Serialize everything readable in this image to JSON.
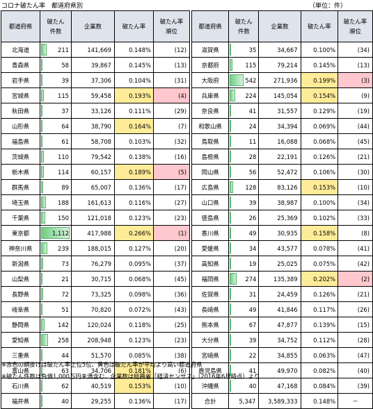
{
  "title": "コロナ破たん率　都道府県別",
  "unit": "（単位：件）",
  "headers": {
    "pref": "都道府県",
    "count_l1": "破たん",
    "count_l2": "件数",
    "companies": "企業数",
    "rate": "破たん率",
    "rank_l1": "破たん率",
    "rank_l2": "順位"
  },
  "max_count": 1112,
  "left_rows": [
    {
      "pref": "北海道",
      "count": "211",
      "count_value": 211,
      "companies": "141,669",
      "rate": "0.148%",
      "rank": "(12)",
      "highlight": "",
      "rank_highlight": ""
    },
    {
      "pref": "青森県",
      "count": "58",
      "count_value": 58,
      "companies": "39,867",
      "rate": "0.145%",
      "rank": "(13)",
      "highlight": "",
      "rank_highlight": ""
    },
    {
      "pref": "岩手県",
      "count": "39",
      "count_value": 39,
      "companies": "37,306",
      "rate": "0.104%",
      "rank": "(31)",
      "highlight": "",
      "rank_highlight": ""
    },
    {
      "pref": "宮城県",
      "count": "115",
      "count_value": 115,
      "companies": "59,458",
      "rate": "0.193%",
      "rank": "(4)",
      "highlight": "yellow",
      "rank_highlight": "pink"
    },
    {
      "pref": "秋田県",
      "count": "37",
      "count_value": 37,
      "companies": "33,126",
      "rate": "0.111%",
      "rank": "(29)",
      "highlight": "",
      "rank_highlight": ""
    },
    {
      "pref": "山形県",
      "count": "64",
      "count_value": 64,
      "companies": "38,790",
      "rate": "0.164%",
      "rank": "(7)",
      "highlight": "yellow",
      "rank_highlight": ""
    },
    {
      "pref": "福島県",
      "count": "61",
      "count_value": 61,
      "companies": "58,708",
      "rate": "0.103%",
      "rank": "(32)",
      "highlight": "",
      "rank_highlight": ""
    },
    {
      "pref": "茨城県",
      "count": "110",
      "count_value": 110,
      "companies": "79,542",
      "rate": "0.138%",
      "rank": "(16)",
      "highlight": "",
      "rank_highlight": ""
    },
    {
      "pref": "栃木県",
      "count": "114",
      "count_value": 114,
      "companies": "60,157",
      "rate": "0.189%",
      "rank": "(5)",
      "highlight": "yellow",
      "rank_highlight": "pink"
    },
    {
      "pref": "群馬県",
      "count": "89",
      "count_value": 89,
      "companies": "65,007",
      "rate": "0.136%",
      "rank": "(17)",
      "highlight": "",
      "rank_highlight": ""
    },
    {
      "pref": "埼玉県",
      "count": "188",
      "count_value": 188,
      "companies": "161,613",
      "rate": "0.116%",
      "rank": "(27)",
      "highlight": "",
      "rank_highlight": ""
    },
    {
      "pref": "千葉県",
      "count": "150",
      "count_value": 150,
      "companies": "121,018",
      "rate": "0.123%",
      "rank": "(23)",
      "highlight": "",
      "rank_highlight": ""
    },
    {
      "pref": "東京都",
      "count": "1,112",
      "count_value": 1112,
      "companies": "417,988",
      "rate": "0.266%",
      "rank": "(1)",
      "highlight": "yellow",
      "rank_highlight": "pink"
    },
    {
      "pref": "神奈川県",
      "count": "239",
      "count_value": 239,
      "companies": "188,015",
      "rate": "0.127%",
      "rank": "(20)",
      "highlight": "",
      "rank_highlight": ""
    },
    {
      "pref": "新潟県",
      "count": "73",
      "count_value": 73,
      "companies": "76,279",
      "rate": "0.095%",
      "rank": "(37)",
      "highlight": "",
      "rank_highlight": ""
    },
    {
      "pref": "山梨県",
      "count": "21",
      "count_value": 21,
      "companies": "30,715",
      "rate": "0.068%",
      "rank": "(45)",
      "highlight": "",
      "rank_highlight": ""
    },
    {
      "pref": "長野県",
      "count": "72",
      "count_value": 72,
      "companies": "73,325",
      "rate": "0.098%",
      "rank": "(36)",
      "highlight": "",
      "rank_highlight": ""
    },
    {
      "pref": "岐阜県",
      "count": "51",
      "count_value": 51,
      "companies": "70,820",
      "rate": "0.072%",
      "rank": "(43)",
      "highlight": "",
      "rank_highlight": ""
    },
    {
      "pref": "静岡県",
      "count": "142",
      "count_value": 142,
      "companies": "120,024",
      "rate": "0.118%",
      "rank": "(25)",
      "highlight": "",
      "rank_highlight": ""
    },
    {
      "pref": "愛知県",
      "count": "258",
      "count_value": 258,
      "companies": "208,948",
      "rate": "0.123%",
      "rank": "(23)",
      "highlight": "",
      "rank_highlight": ""
    },
    {
      "pref": "三重県",
      "count": "44",
      "count_value": 44,
      "companies": "51,570",
      "rate": "0.085%",
      "rank": "(38)",
      "highlight": "",
      "rank_highlight": ""
    },
    {
      "pref": "富山県",
      "count": "63",
      "count_value": 63,
      "companies": "34,706",
      "rate": "0.181%",
      "rank": "(6)",
      "highlight": "yellow",
      "rank_highlight": ""
    },
    {
      "pref": "石川県",
      "count": "62",
      "count_value": 62,
      "companies": "40,519",
      "rate": "0.153%",
      "rank": "(10)",
      "highlight": "yellow",
      "rank_highlight": ""
    },
    {
      "pref": "福井県",
      "count": "40",
      "count_value": 40,
      "companies": "29,255",
      "rate": "0.136%",
      "rank": "(17)",
      "highlight": "",
      "rank_highlight": ""
    }
  ],
  "right_rows": [
    {
      "pref": "滋賀県",
      "count": "35",
      "count_value": 35,
      "companies": "34,667",
      "rate": "0.100%",
      "rank": "(34)",
      "highlight": "",
      "rank_highlight": ""
    },
    {
      "pref": "京都府",
      "count": "115",
      "count_value": 115,
      "companies": "79,214",
      "rate": "0.145%",
      "rank": "(13)",
      "highlight": "",
      "rank_highlight": ""
    },
    {
      "pref": "大阪府",
      "count": "542",
      "count_value": 542,
      "companies": "271,936",
      "rate": "0.199%",
      "rank": "(3)",
      "highlight": "yellow",
      "rank_highlight": "pink"
    },
    {
      "pref": "兵庫県",
      "count": "224",
      "count_value": 224,
      "companies": "145,054",
      "rate": "0.154%",
      "rank": "(9)",
      "highlight": "yellow",
      "rank_highlight": ""
    },
    {
      "pref": "奈良県",
      "count": "41",
      "count_value": 41,
      "companies": "31,557",
      "rate": "0.129%",
      "rank": "(19)",
      "highlight": "",
      "rank_highlight": ""
    },
    {
      "pref": "和歌山県",
      "count": "24",
      "count_value": 24,
      "companies": "34,394",
      "rate": "0.069%",
      "rank": "(44)",
      "highlight": "",
      "rank_highlight": ""
    },
    {
      "pref": "鳥取県",
      "count": "11",
      "count_value": 11,
      "companies": "16,088",
      "rate": "0.068%",
      "rank": "(45)",
      "highlight": "",
      "rank_highlight": ""
    },
    {
      "pref": "島根県",
      "count": "28",
      "count_value": 28,
      "companies": "22,191",
      "rate": "0.126%",
      "rank": "(21)",
      "highlight": "",
      "rank_highlight": ""
    },
    {
      "pref": "岡山県",
      "count": "56",
      "count_value": 56,
      "companies": "52,472",
      "rate": "0.106%",
      "rank": "(30)",
      "highlight": "",
      "rank_highlight": ""
    },
    {
      "pref": "広島県",
      "count": "128",
      "count_value": 128,
      "companies": "83,126",
      "rate": "0.153%",
      "rank": "(10)",
      "highlight": "yellow",
      "rank_highlight": ""
    },
    {
      "pref": "山口県",
      "count": "39",
      "count_value": 39,
      "companies": "38,987",
      "rate": "0.100%",
      "rank": "(34)",
      "highlight": "",
      "rank_highlight": ""
    },
    {
      "pref": "徳島県",
      "count": "26",
      "count_value": 26,
      "companies": "25,369",
      "rate": "0.102%",
      "rank": "(33)",
      "highlight": "",
      "rank_highlight": ""
    },
    {
      "pref": "香川県",
      "count": "49",
      "count_value": 49,
      "companies": "30,935",
      "rate": "0.158%",
      "rank": "(8)",
      "highlight": "yellow",
      "rank_highlight": ""
    },
    {
      "pref": "愛媛県",
      "count": "34",
      "count_value": 34,
      "companies": "43,577",
      "rate": "0.078%",
      "rank": "(41)",
      "highlight": "",
      "rank_highlight": ""
    },
    {
      "pref": "高知県",
      "count": "19",
      "count_value": 19,
      "companies": "25,025",
      "rate": "0.075%",
      "rank": "(42)",
      "highlight": "",
      "rank_highlight": ""
    },
    {
      "pref": "福岡県",
      "count": "274",
      "count_value": 274,
      "companies": "135,389",
      "rate": "0.202%",
      "rank": "(2)",
      "highlight": "yellow",
      "rank_highlight": "pink"
    },
    {
      "pref": "佐賀県",
      "count": "31",
      "count_value": 31,
      "companies": "24,459",
      "rate": "0.126%",
      "rank": "(21)",
      "highlight": "",
      "rank_highlight": ""
    },
    {
      "pref": "長崎県",
      "count": "49",
      "count_value": 49,
      "companies": "41,846",
      "rate": "0.117%",
      "rank": "(26)",
      "highlight": "",
      "rank_highlight": ""
    },
    {
      "pref": "熊本県",
      "count": "67",
      "count_value": 67,
      "companies": "47,877",
      "rate": "0.139%",
      "rank": "(15)",
      "highlight": "",
      "rank_highlight": ""
    },
    {
      "pref": "大分県",
      "count": "39",
      "count_value": 39,
      "companies": "34,752",
      "rate": "0.112%",
      "rank": "(28)",
      "highlight": "",
      "rank_highlight": ""
    },
    {
      "pref": "宮崎県",
      "count": "22",
      "count_value": 22,
      "companies": "34,855",
      "rate": "0.063%",
      "rank": "(47)",
      "highlight": "",
      "rank_highlight": ""
    },
    {
      "pref": "鹿児島県",
      "count": "41",
      "count_value": 41,
      "companies": "49,970",
      "rate": "0.082%",
      "rank": "(40)",
      "highlight": "",
      "rank_highlight": ""
    },
    {
      "pref": "沖縄県",
      "count": "40",
      "count_value": 40,
      "companies": "47,168",
      "rate": "0.084%",
      "rank": "(39)",
      "highlight": "",
      "rank_highlight": ""
    }
  ],
  "total": {
    "label": "合計",
    "count": "5,347",
    "companies": "3,589,333",
    "rate": "0.148%",
    "rank": "－"
  },
  "notes": [
    "※赤色の網掛けは破たん率上位5位、黄色は破たん率が平均より高い都道府県",
    "※破たん件数は負債1,000万円未満含む、企業数は総務省「経済センサス」（2016年6月時点）より"
  ],
  "colors": {
    "header_bg": "#dfe4ec",
    "yellow": "#ffec99",
    "pink": "#ffc7ce",
    "bar_green": "#6fcf85"
  }
}
